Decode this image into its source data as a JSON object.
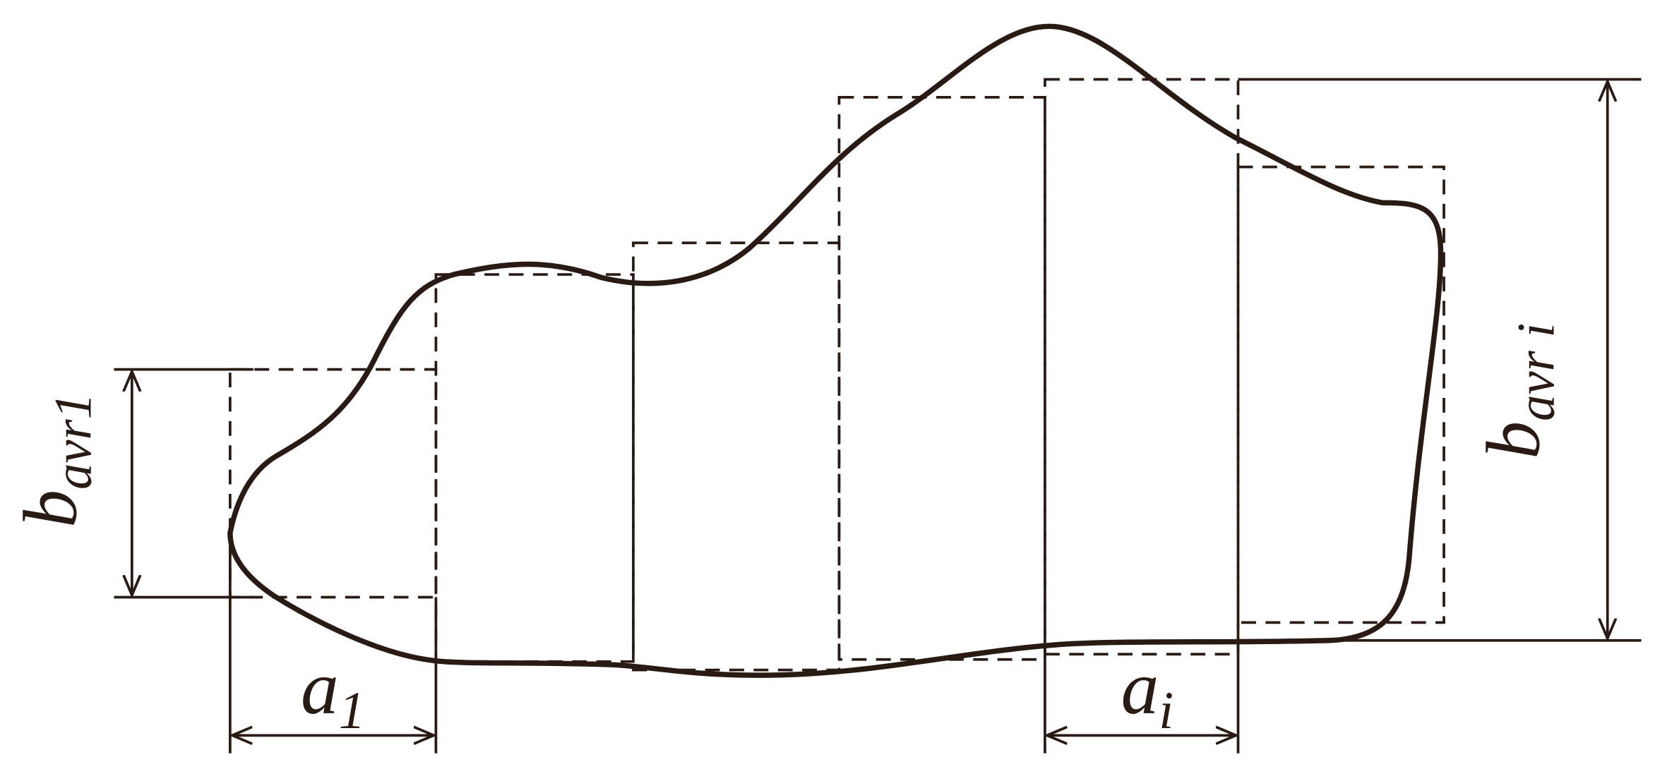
{
  "labels": {
    "b_left": {
      "base": "b",
      "sub": "avr1"
    },
    "b_right": {
      "base": "b",
      "sub": "avr i"
    },
    "a_left": {
      "base": "a",
      "sub": "1"
    },
    "a_right": {
      "base": "a",
      "sub": "i"
    }
  }
}
